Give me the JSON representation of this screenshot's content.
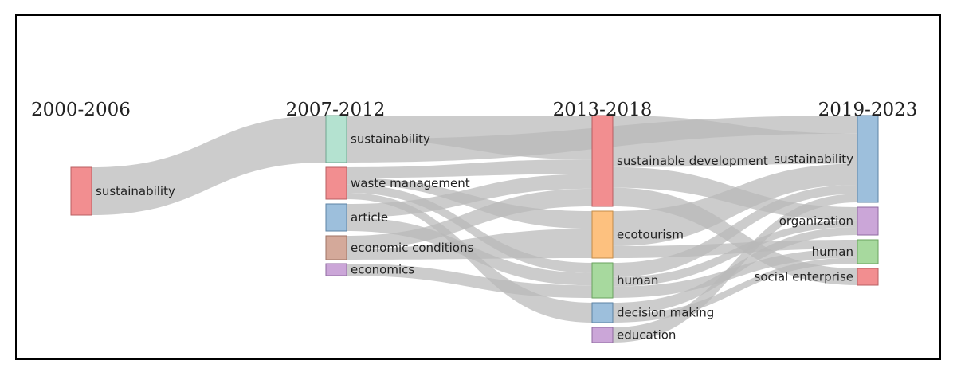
{
  "diagram": {
    "type": "sankey",
    "periods": [
      "2000-2006",
      "2007-2012",
      "2013-2018",
      "2019-2023"
    ],
    "nodes": [
      {
        "id": "p1_sust",
        "label": "sustainability",
        "period": 0,
        "color": "#f28e90",
        "stroke": "#b85f62"
      },
      {
        "id": "p2_sust",
        "label": "sustainability",
        "period": 1,
        "color": "#b4e2d0",
        "stroke": "#6fa58f"
      },
      {
        "id": "p2_waste",
        "label": "waste management",
        "period": 1,
        "color": "#f28e90",
        "stroke": "#b85f62"
      },
      {
        "id": "p2_article",
        "label": "article",
        "period": 1,
        "color": "#9dbfdc",
        "stroke": "#5d83a5"
      },
      {
        "id": "p2_econcond",
        "label": "economic conditions",
        "period": 1,
        "color": "#d4a99a",
        "stroke": "#9e7264"
      },
      {
        "id": "p2_econ",
        "label": "economics",
        "period": 1,
        "color": "#cba6d8",
        "stroke": "#8f6aa0"
      },
      {
        "id": "p3_sd",
        "label": "sustainable development",
        "period": 2,
        "color": "#f28e90",
        "stroke": "#b85f62"
      },
      {
        "id": "p3_eco",
        "label": "ecotourism",
        "period": 2,
        "color": "#fdc17f",
        "stroke": "#c48c48"
      },
      {
        "id": "p3_human",
        "label": "human",
        "period": 2,
        "color": "#a7d99e",
        "stroke": "#6aa25f"
      },
      {
        "id": "p3_dm",
        "label": "decision making",
        "period": 2,
        "color": "#9dbfdc",
        "stroke": "#5d83a5"
      },
      {
        "id": "p3_edu",
        "label": "education",
        "period": 2,
        "color": "#cba6d8",
        "stroke": "#8f6aa0"
      },
      {
        "id": "p4_sust",
        "label": "sustainability",
        "period": 3,
        "color": "#9dbfdc",
        "stroke": "#5d83a5"
      },
      {
        "id": "p4_org",
        "label": "organization",
        "period": 3,
        "color": "#cba6d8",
        "stroke": "#8f6aa0"
      },
      {
        "id": "p4_human",
        "label": "human",
        "period": 3,
        "color": "#a7d99e",
        "stroke": "#6aa25f"
      },
      {
        "id": "p4_se",
        "label": "social enterprise",
        "period": 3,
        "color": "#f28e90",
        "stroke": "#b85f62"
      }
    ],
    "links": [
      {
        "source": "p1_sust",
        "target": "p2_sust",
        "value": 60
      },
      {
        "source": "p2_sust",
        "target": "p3_sd",
        "value": 30
      },
      {
        "source": "p2_sust",
        "target": "p4_sust",
        "value": 30
      },
      {
        "source": "p2_waste",
        "target": "p3_sd",
        "value": 10
      },
      {
        "source": "p2_waste",
        "target": "p3_human",
        "value": 8
      },
      {
        "source": "p2_waste",
        "target": "p3_dm",
        "value": 6
      },
      {
        "source": "p2_waste",
        "target": "p3_eco",
        "value": 6
      },
      {
        "source": "p2_article",
        "target": "p3_sd",
        "value": 10
      },
      {
        "source": "p2_article",
        "target": "p3_human",
        "value": 10
      },
      {
        "source": "p2_econcond",
        "target": "p3_sd",
        "value": 12
      },
      {
        "source": "p2_econcond",
        "target": "p3_eco",
        "value": 10
      },
      {
        "source": "p2_econ",
        "target": "p3_human",
        "value": 10
      },
      {
        "source": "p3_sd",
        "target": "p4_sust",
        "value": 50
      },
      {
        "source": "p3_sd",
        "target": "p4_org",
        "value": 20
      },
      {
        "source": "p3_sd",
        "target": "p4_se",
        "value": 18
      },
      {
        "source": "p3_eco",
        "target": "p4_sust",
        "value": 35
      },
      {
        "source": "p3_eco",
        "target": "p4_human",
        "value": 12
      },
      {
        "source": "p3_human",
        "target": "p4_sust",
        "value": 15
      },
      {
        "source": "p3_human",
        "target": "p4_human",
        "value": 12
      },
      {
        "source": "p3_human",
        "target": "p4_org",
        "value": 10
      },
      {
        "source": "p3_dm",
        "target": "p4_org",
        "value": 12
      },
      {
        "source": "p3_dm",
        "target": "p4_human",
        "value": 8
      },
      {
        "source": "p3_edu",
        "target": "p4_sust",
        "value": 14
      }
    ]
  }
}
